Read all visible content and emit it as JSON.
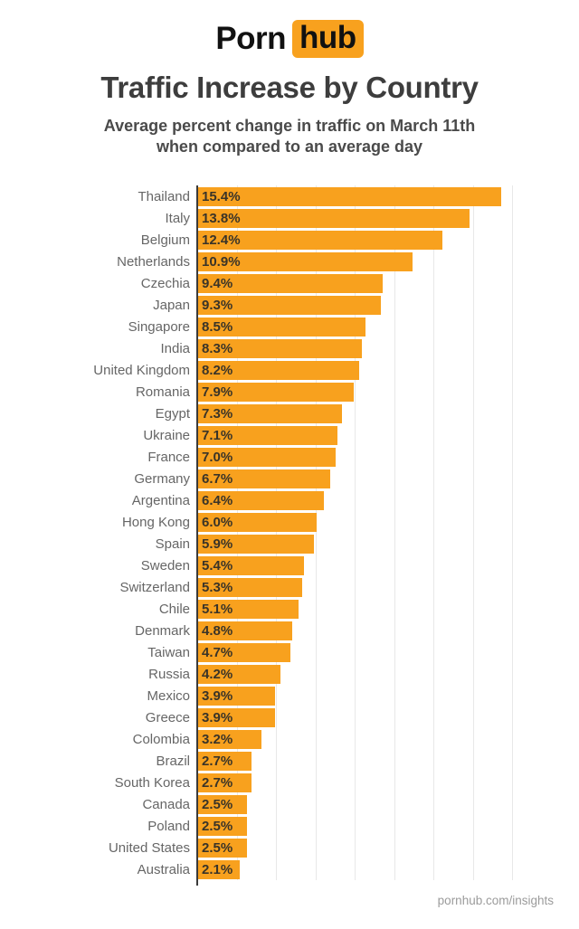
{
  "logo": {
    "part1": "Porn",
    "part2": "hub",
    "box_color": "#f8a11e"
  },
  "header": {
    "title": "Traffic Increase by Country",
    "subtitle_line1": "Average percent change in traffic on March 11th",
    "subtitle_line2": "when compared to an average day"
  },
  "footer": {
    "credit": "pornhub.com/insights"
  },
  "chart_data": {
    "type": "bar",
    "orientation": "horizontal",
    "title": "Traffic Increase by Country",
    "subtitle": "Average percent change in traffic on March 11th when compared to an average day",
    "categories": [
      "Thailand",
      "Italy",
      "Belgium",
      "Netherlands",
      "Czechia",
      "Japan",
      "Singapore",
      "India",
      "United Kingdom",
      "Romania",
      "Egypt",
      "Ukraine",
      "France",
      "Germany",
      "Argentina",
      "Hong Kong",
      "Spain",
      "Sweden",
      "Switzerland",
      "Chile",
      "Denmark",
      "Taiwan",
      "Russia",
      "Mexico",
      "Greece",
      "Colombia",
      "Brazil",
      "South Korea",
      "Canada",
      "Poland",
      "United States",
      "Australia"
    ],
    "values": [
      15.4,
      13.8,
      12.4,
      10.9,
      9.4,
      9.3,
      8.5,
      8.3,
      8.2,
      7.9,
      7.3,
      7.1,
      7.0,
      6.7,
      6.4,
      6.0,
      5.9,
      5.4,
      5.3,
      5.1,
      4.8,
      4.7,
      4.2,
      3.9,
      3.9,
      3.2,
      2.7,
      2.7,
      2.5,
      2.5,
      2.5,
      2.1
    ],
    "value_label_format": "{value}%",
    "xlim": [
      0,
      16
    ],
    "gridline_step": 2,
    "grid": true,
    "legend": false,
    "bar_color": "#f8a11e",
    "axis_color": "#3a3a3a",
    "gridline_color": "#e8e8e8",
    "category_label_color": "#666666",
    "value_label_color": "#3a3428"
  }
}
